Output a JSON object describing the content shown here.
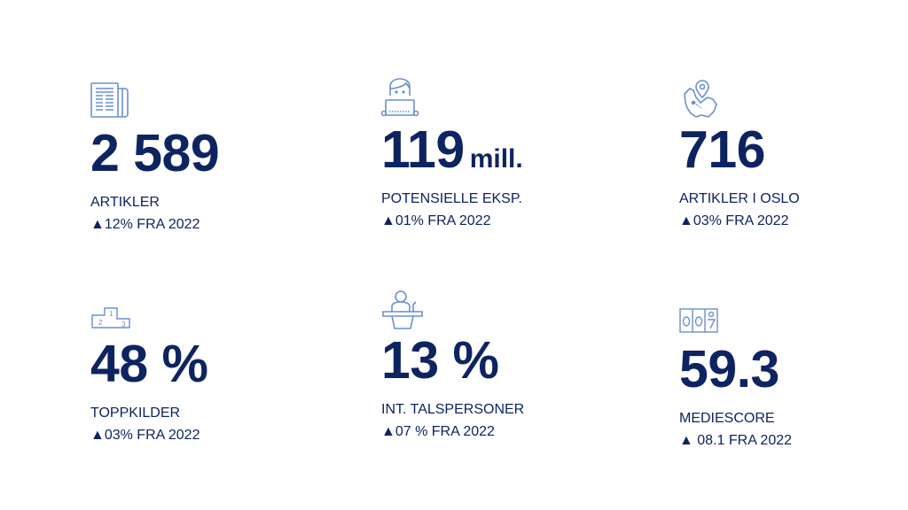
{
  "colors": {
    "text": "#0e2461",
    "icon": "#6b8fd0"
  },
  "stats": [
    {
      "icon": "newspaper-icon",
      "value": "2 589",
      "unit": "",
      "label": "ARTIKLER",
      "change": "▲12% FRA 2022"
    },
    {
      "icon": "person-laptop-icon",
      "value": "119",
      "unit": "mill.",
      "label": "POTENSIELLE EKSP.",
      "change": "▲01% FRA 2022"
    },
    {
      "icon": "map-pin-icon",
      "value": "716",
      "unit": "",
      "label": "ARTIKLER I OSLO",
      "change": "▲03% FRA 2022"
    },
    {
      "icon": "podium-icon",
      "value": "48 %",
      "unit": "",
      "label": "TOPPKILDER",
      "change": "▲03% FRA 2022"
    },
    {
      "icon": "speaker-lectern-icon",
      "value": "13 %",
      "unit": "",
      "label": "INT. TALSPERSONER",
      "change": "▲07 % FRA 2022"
    },
    {
      "icon": "score-counter-icon",
      "value": "59.3",
      "unit": "",
      "label": "MEDIESCORE",
      "change": "▲ 08.1 FRA 2022"
    }
  ]
}
